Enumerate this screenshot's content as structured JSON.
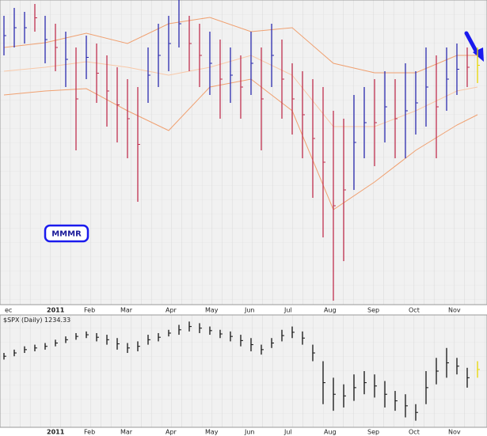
{
  "chart_data": [
    {
      "type": "ohlc",
      "title": "MMMR",
      "high": [
        365,
        375,
        370,
        380,
        365,
        355,
        345,
        325,
        340,
        330,
        315,
        300,
        285,
        275,
        325,
        355,
        365,
        385,
        365,
        355,
        345,
        335,
        325,
        315,
        345,
        325,
        355,
        335,
        305,
        295,
        285,
        275,
        245,
        235,
        265,
        275,
        285,
        295,
        285,
        305,
        295,
        325,
        315,
        325,
        330,
        325,
        325
      ],
      "low": [
        315,
        325,
        330,
        345,
        305,
        295,
        275,
        195,
        285,
        255,
        225,
        205,
        185,
        130,
        255,
        275,
        295,
        325,
        295,
        275,
        265,
        235,
        255,
        235,
        265,
        195,
        275,
        235,
        215,
        185,
        135,
        85,
        5,
        55,
        145,
        185,
        175,
        205,
        185,
        185,
        215,
        225,
        185,
        245,
        265,
        275,
        280
      ],
      "up": [
        true,
        true,
        true,
        false,
        true,
        false,
        true,
        false,
        true,
        false,
        false,
        false,
        false,
        false,
        true,
        true,
        true,
        true,
        false,
        false,
        true,
        false,
        true,
        false,
        true,
        false,
        true,
        false,
        false,
        false,
        false,
        false,
        false,
        false,
        true,
        true,
        false,
        true,
        false,
        true,
        true,
        true,
        false,
        true,
        true,
        false,
        true
      ],
      "up_color": "#2b2bb0",
      "down_color": "#c0304f",
      "last_color": "#e8d800",
      "ylim": [
        0,
        385
      ],
      "bands": [
        {
          "color": "#f0a070",
          "x": [
            0,
            4,
            8,
            12,
            16,
            20,
            24,
            28,
            32,
            36,
            40,
            44,
            46
          ],
          "values": [
            325,
            331,
            343,
            330,
            355,
            363,
            345,
            350,
            305,
            293,
            293,
            315,
            315
          ]
        },
        {
          "color": "#f0a070",
          "x": [
            0,
            4,
            8,
            12,
            16,
            20,
            24,
            28,
            32,
            36,
            40,
            44,
            46
          ],
          "values": [
            265,
            270,
            273,
            245,
            220,
            275,
            285,
            245,
            120,
            155,
            195,
            227,
            240
          ]
        },
        {
          "color": "#f8c8a8",
          "x": [
            0,
            4,
            8,
            12,
            16,
            20,
            24,
            28,
            32,
            36,
            40,
            44,
            46
          ],
          "values": [
            295,
            300,
            307,
            300,
            290,
            300,
            315,
            290,
            225,
            225,
            245,
            270,
            275
          ]
        }
      ],
      "x_labels": [
        "ec",
        "2011",
        "Feb",
        "Mar",
        "Apr",
        "May",
        "Jun",
        "Jul",
        "Aug",
        "Sep",
        "Oct",
        "Nov"
      ]
    },
    {
      "type": "ohlc",
      "title": "$SPX (Daily)",
      "last_value": 1234.33,
      "high": [
        1275,
        1285,
        1295,
        1300,
        1305,
        1315,
        1325,
        1335,
        1340,
        1335,
        1330,
        1320,
        1305,
        1310,
        1330,
        1335,
        1345,
        1360,
        1370,
        1365,
        1355,
        1345,
        1340,
        1330,
        1320,
        1300,
        1320,
        1345,
        1355,
        1340,
        1300,
        1250,
        1200,
        1180,
        1210,
        1220,
        1210,
        1190,
        1160,
        1150,
        1120,
        1220,
        1260,
        1290,
        1260,
        1230,
        1250
      ],
      "low": [
        1255,
        1265,
        1275,
        1280,
        1285,
        1295,
        1305,
        1315,
        1320,
        1310,
        1300,
        1285,
        1275,
        1280,
        1300,
        1310,
        1325,
        1330,
        1340,
        1335,
        1330,
        1320,
        1310,
        1295,
        1280,
        1270,
        1290,
        1310,
        1320,
        1300,
        1250,
        1120,
        1100,
        1110,
        1130,
        1150,
        1140,
        1110,
        1100,
        1080,
        1070,
        1120,
        1180,
        1200,
        1210,
        1170,
        1200
      ],
      "color": "#111111",
      "last_color": "#e8d800",
      "ylim": [
        1050,
        1390
      ],
      "x_labels": [
        "2011",
        "Feb",
        "Mar",
        "Apr",
        "May",
        "Jun",
        "Jul",
        "Aug",
        "Sep",
        "Oct",
        "Nov"
      ]
    }
  ]
}
